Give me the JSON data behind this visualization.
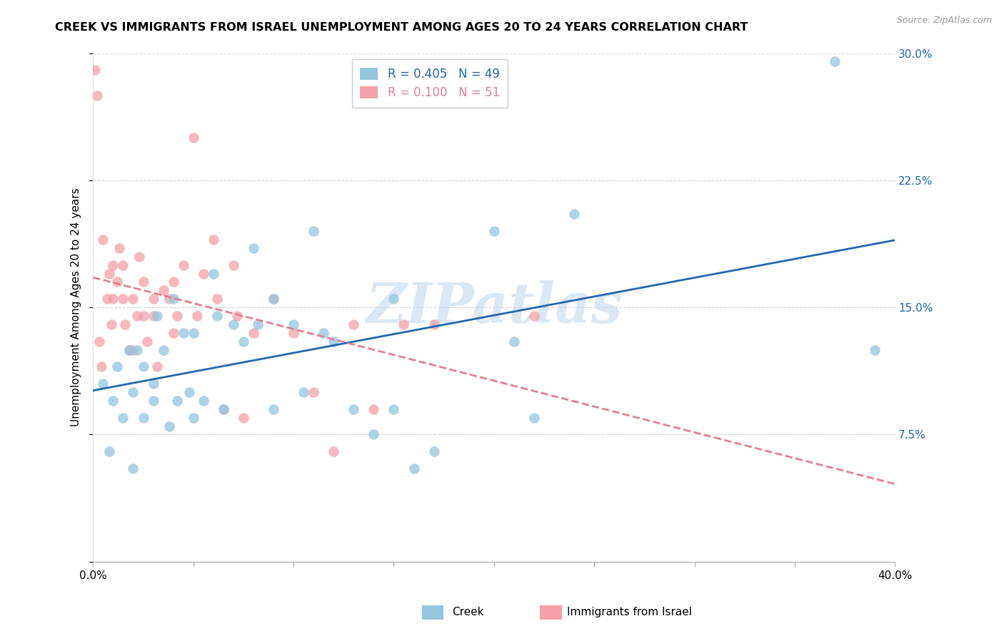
{
  "title": "CREEK VS IMMIGRANTS FROM ISRAEL UNEMPLOYMENT AMONG AGES 20 TO 24 YEARS CORRELATION CHART",
  "source_text": "Source: ZipAtlas.com",
  "ylabel": "Unemployment Among Ages 20 to 24 years",
  "xlim": [
    0.0,
    0.4
  ],
  "ylim": [
    0.0,
    0.3
  ],
  "xticks": [
    0.0,
    0.05,
    0.1,
    0.15,
    0.2,
    0.25,
    0.3,
    0.35,
    0.4
  ],
  "xticklabels": [
    "0.0%",
    "",
    "",
    "",
    "",
    "",
    "",
    "",
    "40.0%"
  ],
  "yticks": [
    0.0,
    0.075,
    0.15,
    0.225,
    0.3
  ],
  "yticklabels": [
    "",
    "7.5%",
    "15.0%",
    "22.5%",
    "30.0%"
  ],
  "creek_R": 0.405,
  "creek_N": 49,
  "israel_R": 0.1,
  "israel_N": 51,
  "creek_color": "#92c5de",
  "israel_color": "#f4a0a8",
  "creek_line_color": "#2166ac",
  "israel_line_color": "#e08090",
  "watermark": "ZIPatlas",
  "watermark_color": "#c5d8ee",
  "creek_legend_label": "R = 0.405   N = 49",
  "israel_legend_label": "R = 0.100   N = 51",
  "creek_bottom_label": "Creek",
  "israel_bottom_label": "Immigrants from Israel",
  "creek_scatter_x": [
    0.005,
    0.008,
    0.01,
    0.012,
    0.015,
    0.018,
    0.02,
    0.02,
    0.022,
    0.025,
    0.025,
    0.03,
    0.03,
    0.032,
    0.035,
    0.038,
    0.04,
    0.042,
    0.045,
    0.048,
    0.05,
    0.05,
    0.055,
    0.06,
    0.062,
    0.065,
    0.07,
    0.075,
    0.08,
    0.082,
    0.09,
    0.09,
    0.1,
    0.105,
    0.11,
    0.115,
    0.12,
    0.13,
    0.14,
    0.15,
    0.15,
    0.16,
    0.17,
    0.2,
    0.21,
    0.22,
    0.24,
    0.37,
    0.39
  ],
  "creek_scatter_y": [
    0.105,
    0.065,
    0.095,
    0.115,
    0.085,
    0.125,
    0.055,
    0.1,
    0.125,
    0.115,
    0.085,
    0.095,
    0.105,
    0.145,
    0.125,
    0.08,
    0.155,
    0.095,
    0.135,
    0.1,
    0.085,
    0.135,
    0.095,
    0.17,
    0.145,
    0.09,
    0.14,
    0.13,
    0.185,
    0.14,
    0.155,
    0.09,
    0.14,
    0.1,
    0.195,
    0.135,
    0.13,
    0.09,
    0.075,
    0.155,
    0.09,
    0.055,
    0.065,
    0.195,
    0.13,
    0.085,
    0.205,
    0.295,
    0.125
  ],
  "israel_scatter_x": [
    0.001,
    0.002,
    0.003,
    0.004,
    0.005,
    0.007,
    0.008,
    0.009,
    0.01,
    0.01,
    0.012,
    0.013,
    0.015,
    0.015,
    0.016,
    0.018,
    0.02,
    0.02,
    0.022,
    0.023,
    0.025,
    0.025,
    0.027,
    0.03,
    0.03,
    0.032,
    0.035,
    0.038,
    0.04,
    0.04,
    0.042,
    0.045,
    0.05,
    0.052,
    0.055,
    0.06,
    0.062,
    0.065,
    0.07,
    0.072,
    0.075,
    0.08,
    0.09,
    0.1,
    0.11,
    0.12,
    0.13,
    0.14,
    0.155,
    0.17,
    0.22
  ],
  "israel_scatter_y": [
    0.29,
    0.275,
    0.13,
    0.115,
    0.19,
    0.155,
    0.17,
    0.14,
    0.175,
    0.155,
    0.165,
    0.185,
    0.155,
    0.175,
    0.14,
    0.125,
    0.125,
    0.155,
    0.145,
    0.18,
    0.165,
    0.145,
    0.13,
    0.155,
    0.145,
    0.115,
    0.16,
    0.155,
    0.165,
    0.135,
    0.145,
    0.175,
    0.25,
    0.145,
    0.17,
    0.19,
    0.155,
    0.09,
    0.175,
    0.145,
    0.085,
    0.135,
    0.155,
    0.135,
    0.1,
    0.065,
    0.14,
    0.09,
    0.14,
    0.14,
    0.145
  ]
}
